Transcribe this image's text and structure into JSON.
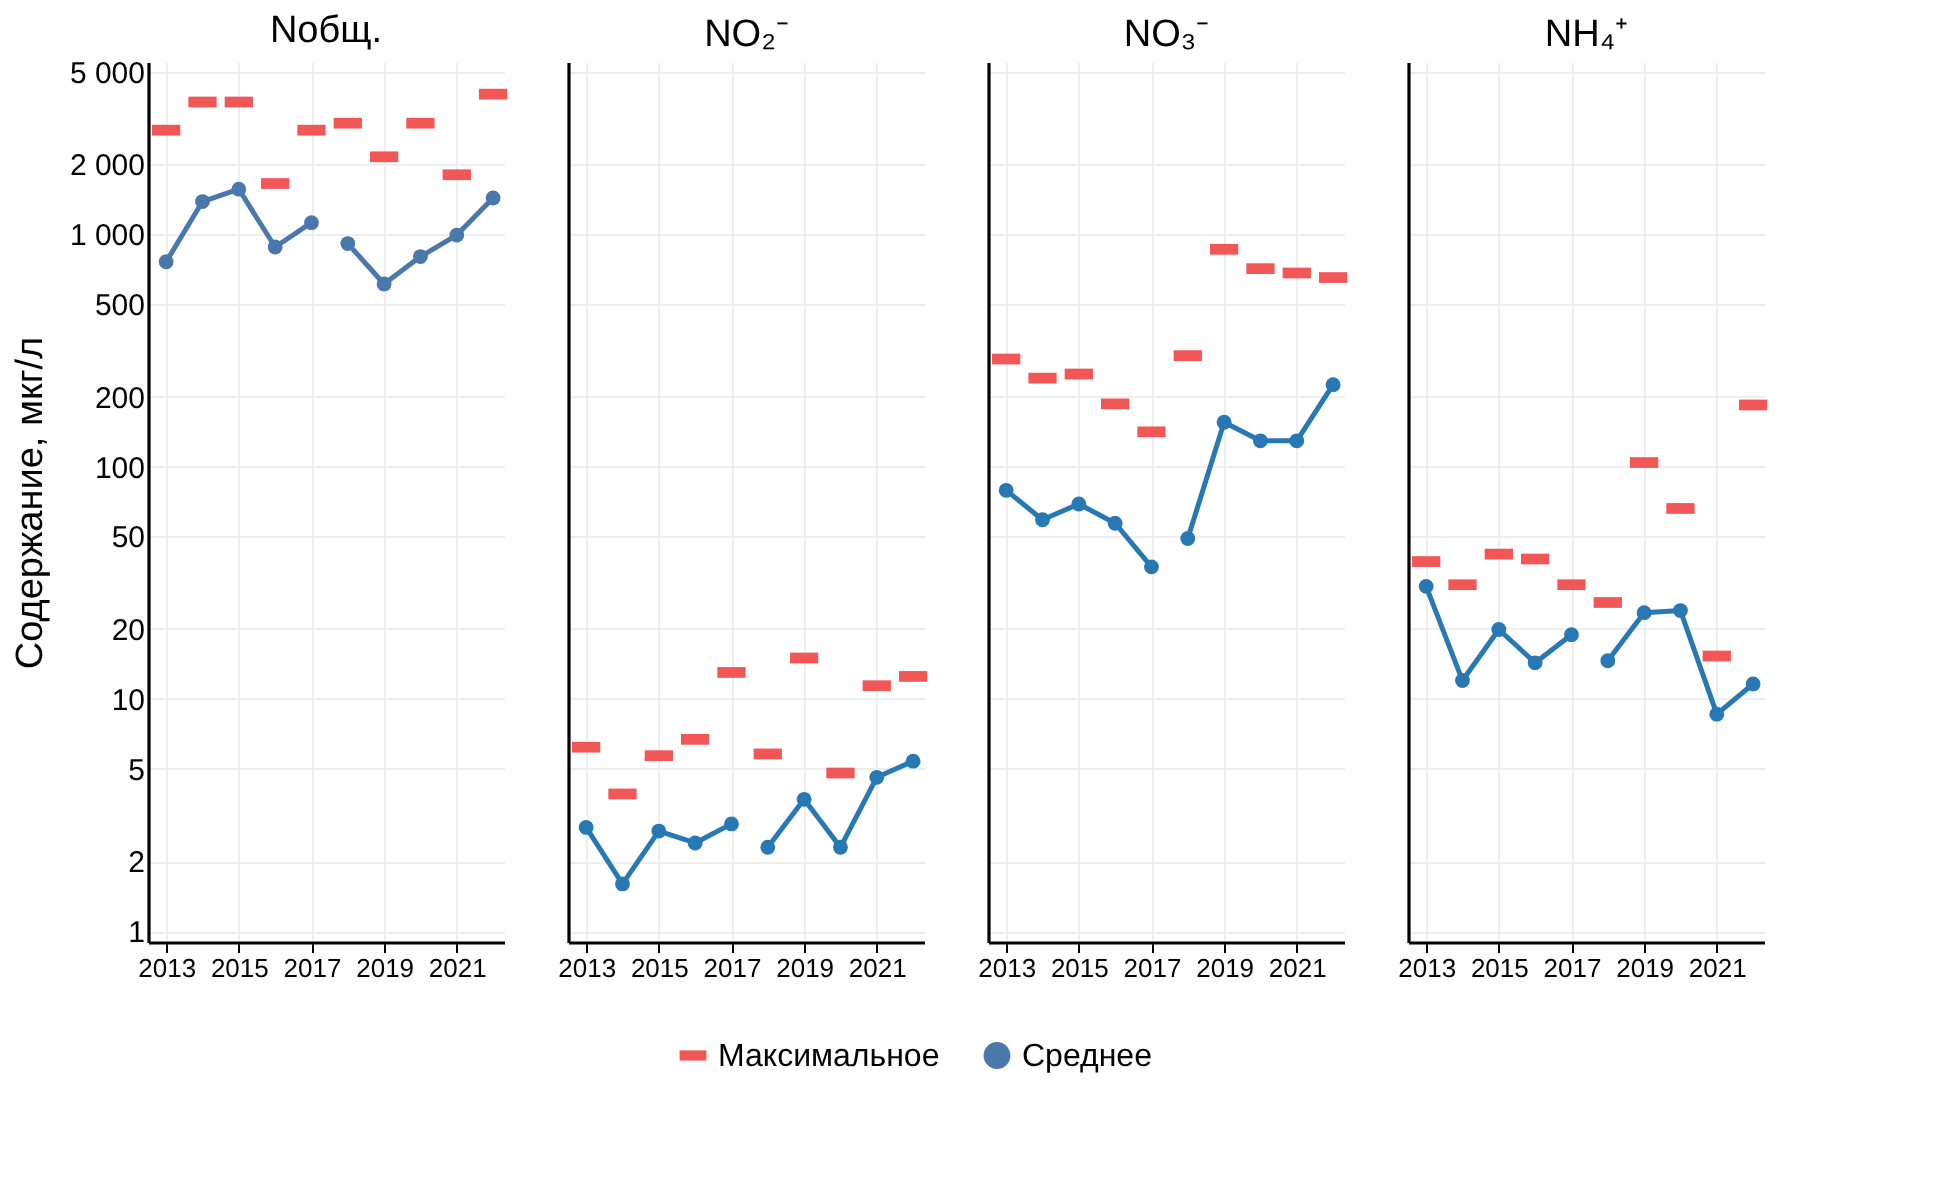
{
  "chart_data": [
    {
      "type": "line",
      "title": "Nобщ.",
      "ylabel": "Содержание, мкг/л",
      "log": "y",
      "grid": true,
      "legend": "bottom",
      "x": [
        2013,
        2014,
        2015,
        2016,
        2017,
        2018,
        2019,
        2020,
        2021,
        2022
      ],
      "xlim": [
        2012.5,
        2022.3
      ],
      "xticks": [
        2013,
        2015,
        2017,
        2019,
        2021
      ],
      "ylim": [
        0.9,
        5500
      ],
      "yticks": [
        1,
        2,
        5,
        10,
        20,
        50,
        100,
        200,
        500,
        {
          "value": 1000,
          "label": "1 000"
        },
        {
          "value": 2000,
          "label": "2 000"
        },
        {
          "value": 5000,
          "label": "5 000"
        }
      ],
      "series": [
        {
          "name": "Максимальное",
          "type": "scatter",
          "color": "#f25757",
          "values": [
            2800,
            3700,
            3700,
            1650,
            2800,
            3000,
            2150,
            3000,
            1800,
            4000
          ]
        },
        {
          "name": "Среднее",
          "marker": "circle",
          "color": "#4a78ad",
          "x": [
            2013,
            2014,
            2015,
            2016,
            2017
          ],
          "values": [
            760,
            1380,
            1560,
            880,
            1120
          ]
        },
        {
          "marker": "circle",
          "color": "#4a78ad",
          "x": [
            2018,
            2019,
            2020,
            2021,
            2022
          ],
          "values": [
            910,
            610,
            800,
            990,
            1430
          ]
        }
      ]
    },
    {
      "type": "line",
      "title": "NO₂⁻",
      "log": "y",
      "grid": true,
      "tick_labels": "x",
      "x": [
        2013,
        2014,
        2015,
        2016,
        2017,
        2018,
        2019,
        2020,
        2021,
        2022
      ],
      "xlim": [
        2012.5,
        2022.3
      ],
      "xticks": [
        2013,
        2015,
        2017,
        2019,
        2021
      ],
      "ylim": [
        0.9,
        5500
      ],
      "yticks": [
        1,
        2,
        5,
        10,
        20,
        50,
        100,
        200,
        500,
        1000,
        2000,
        5000
      ],
      "series": [
        {
          "type": "scatter",
          "color": "#f25757",
          "values": [
            6.2,
            3.9,
            5.7,
            6.7,
            13,
            5.8,
            15,
            4.8,
            11.4,
            12.5
          ]
        },
        {
          "marker": "circle",
          "color": "#2878b4",
          "x": [
            2013,
            2014,
            2015,
            2016,
            2017
          ],
          "values": [
            2.8,
            1.6,
            2.7,
            2.4,
            2.9
          ]
        },
        {
          "marker": "circle",
          "color": "#2878b4",
          "x": [
            2018,
            2019,
            2020,
            2021,
            2022
          ],
          "values": [
            2.3,
            3.7,
            2.3,
            4.6,
            5.4
          ]
        }
      ]
    },
    {
      "type": "line",
      "title": "NO₃⁻",
      "log": "y",
      "grid": true,
      "tick_labels": "x",
      "x": [
        2013,
        2014,
        2015,
        2016,
        2017,
        2018,
        2019,
        2020,
        2021,
        2022
      ],
      "xlim": [
        2012.5,
        2022.3
      ],
      "xticks": [
        2013,
        2015,
        2017,
        2019,
        2021
      ],
      "ylim": [
        0.9,
        5500
      ],
      "yticks": [
        1,
        2,
        5,
        10,
        20,
        50,
        100,
        200,
        500,
        1000,
        2000,
        5000
      ],
      "series": [
        {
          "type": "scatter",
          "color": "#f25757",
          "values": [
            290,
            240,
            250,
            186,
            141,
            300,
            860,
            710,
            680,
            650
          ]
        },
        {
          "marker": "circle",
          "color": "#2878b4",
          "x": [
            2013,
            2014,
            2015,
            2016,
            2017
          ],
          "values": [
            79,
            59,
            69,
            57,
            37
          ]
        },
        {
          "marker": "circle",
          "color": "#2878b4",
          "x": [
            2018,
            2019,
            2020,
            2021,
            2022
          ],
          "values": [
            49,
            155,
            129,
            129,
            225
          ]
        }
      ]
    },
    {
      "type": "line",
      "title": "NH₄⁺",
      "log": "y",
      "grid": true,
      "tick_labels": "x",
      "x": [
        2013,
        2014,
        2015,
        2016,
        2017,
        2018,
        2019,
        2020,
        2021,
        2022
      ],
      "xlim": [
        2012.5,
        2022.3
      ],
      "xticks": [
        2013,
        2015,
        2017,
        2019,
        2021
      ],
      "ylim": [
        0.9,
        5500
      ],
      "yticks": [
        1,
        2,
        5,
        10,
        20,
        50,
        100,
        200,
        500,
        1000,
        2000,
        5000
      ],
      "series": [
        {
          "type": "scatter",
          "color": "#f25757",
          "values": [
            39,
            31,
            42,
            40,
            31,
            26,
            104,
            66,
            15.3,
            184
          ]
        },
        {
          "marker": "circle",
          "color": "#2878b4",
          "x": [
            2013,
            2014,
            2015,
            2016,
            2017
          ],
          "values": [
            30.5,
            12,
            19.9,
            14.3,
            18.9
          ]
        },
        {
          "marker": "circle",
          "color": "#2878b4",
          "x": [
            2018,
            2019,
            2020,
            2021,
            2022
          ],
          "values": [
            14.6,
            23.5,
            24,
            8.6,
            11.6
          ]
        }
      ]
    }
  ]
}
